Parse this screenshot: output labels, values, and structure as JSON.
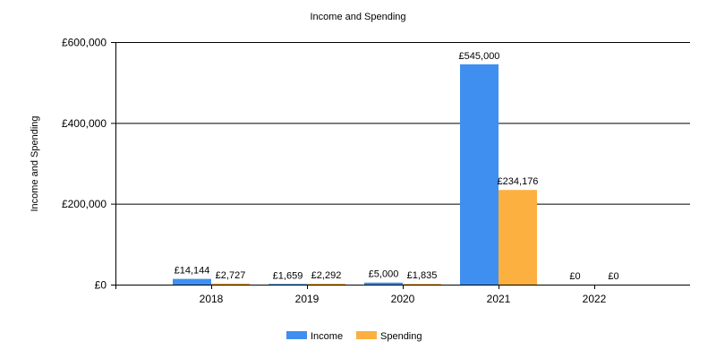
{
  "chart_data": {
    "type": "bar",
    "title": "Income and Spending",
    "xlabel": "",
    "ylabel": "Income and Spending",
    "categories": [
      "2018",
      "2019",
      "2020",
      "2021",
      "2022"
    ],
    "series": [
      {
        "name": "Income",
        "color": "#3f8ff0",
        "values": [
          14144,
          1659,
          5000,
          545000,
          0
        ],
        "labels": [
          "£14,144",
          "£1,659",
          "£5,000",
          "£545,000",
          "£0"
        ]
      },
      {
        "name": "Spending",
        "color": "#fbb040",
        "values": [
          2727,
          2292,
          1835,
          234176,
          0
        ],
        "labels": [
          "£2,727",
          "£2,292",
          "£1,835",
          "£234,176",
          "£0"
        ]
      }
    ],
    "ylim": [
      0,
      600000
    ],
    "yticks": [
      0,
      200000,
      400000,
      600000
    ],
    "ytick_labels": [
      "£0",
      "£200,000",
      "£400,000",
      "£600,000"
    ],
    "grid": true,
    "legend_position": "bottom-center"
  }
}
